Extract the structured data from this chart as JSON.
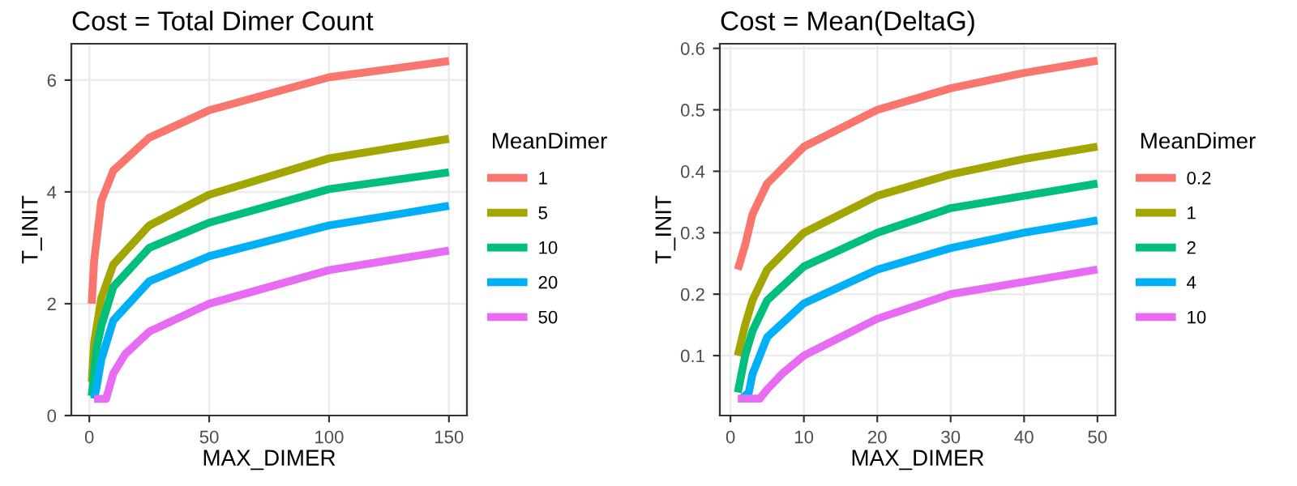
{
  "chart_data": [
    {
      "type": "line",
      "title": "Cost = Total Dimer Count",
      "xlabel": "MAX_DIMER",
      "ylabel": "T_INIT",
      "legend_title": "MeanDimer",
      "legend": "right",
      "grid": true,
      "xlim": [
        -7.5,
        157.5
      ],
      "ylim": [
        0,
        6.65
      ],
      "xticks": [
        0,
        50,
        100,
        150
      ],
      "yticks": [
        0,
        2,
        4,
        6
      ],
      "series": [
        {
          "name": "1",
          "color": "#f8766d",
          "x": [
            1,
            2,
            5,
            10,
            25,
            50,
            100,
            150
          ],
          "values": [
            2.0,
            2.76,
            3.84,
            4.38,
            4.97,
            5.46,
            6.05,
            6.34
          ]
        },
        {
          "name": "5",
          "color": "#a3a500",
          "x": [
            1,
            2,
            5,
            10,
            25,
            50,
            100,
            150
          ],
          "values": [
            0.6,
            1.3,
            2.1,
            2.7,
            3.4,
            3.95,
            4.6,
            4.95
          ]
        },
        {
          "name": "10",
          "color": "#00bf7d",
          "x": [
            1,
            3,
            5,
            10,
            25,
            50,
            100,
            150
          ],
          "values": [
            0.35,
            1.2,
            1.6,
            2.3,
            3.0,
            3.45,
            4.05,
            4.35
          ]
        },
        {
          "name": "20",
          "color": "#00b0f6",
          "x": [
            2,
            3,
            5,
            10,
            25,
            50,
            100,
            150
          ],
          "values": [
            0.3,
            0.5,
            1.0,
            1.7,
            2.4,
            2.85,
            3.4,
            3.75
          ]
        },
        {
          "name": "50",
          "color": "#e76bf3",
          "x": [
            2,
            7,
            10,
            15,
            25,
            50,
            100,
            150
          ],
          "values": [
            0.3,
            0.3,
            0.75,
            1.1,
            1.5,
            2.0,
            2.6,
            2.95
          ]
        }
      ]
    },
    {
      "type": "line",
      "title": "Cost = Mean(DeltaG)",
      "xlabel": "MAX_DIMER",
      "ylabel": "T_INIT",
      "legend_title": "MeanDimer",
      "legend": "right",
      "grid": true,
      "xlim": [
        -1.45,
        52.45
      ],
      "ylim": [
        0.0025,
        0.6075
      ],
      "xticks": [
        0,
        10,
        20,
        30,
        40,
        50
      ],
      "yticks": [
        0.1,
        0.2,
        0.3,
        0.4,
        0.5,
        0.6
      ],
      "series": [
        {
          "name": "0.2",
          "color": "#f8766d",
          "x": [
            1,
            2,
            3,
            5,
            10,
            20,
            30,
            40,
            50
          ],
          "values": [
            0.24,
            0.28,
            0.33,
            0.38,
            0.44,
            0.5,
            0.535,
            0.56,
            0.58
          ]
        },
        {
          "name": "1",
          "color": "#a3a500",
          "x": [
            1,
            2,
            3,
            5,
            10,
            20,
            30,
            40,
            50
          ],
          "values": [
            0.1,
            0.15,
            0.19,
            0.24,
            0.3,
            0.36,
            0.395,
            0.42,
            0.44
          ]
        },
        {
          "name": "2",
          "color": "#00bf7d",
          "x": [
            1,
            2,
            3,
            5,
            10,
            20,
            30,
            40,
            50
          ],
          "values": [
            0.04,
            0.1,
            0.14,
            0.19,
            0.245,
            0.3,
            0.34,
            0.36,
            0.38
          ]
        },
        {
          "name": "4",
          "color": "#00b0f6",
          "x": [
            1.5,
            2.5,
            3,
            5,
            10,
            20,
            30,
            40,
            50
          ],
          "values": [
            0.03,
            0.04,
            0.07,
            0.13,
            0.185,
            0.24,
            0.275,
            0.3,
            0.32
          ]
        },
        {
          "name": "10",
          "color": "#e76bf3",
          "x": [
            1,
            4,
            5,
            7,
            10,
            20,
            30,
            40,
            50
          ],
          "values": [
            0.03,
            0.03,
            0.045,
            0.07,
            0.1,
            0.16,
            0.2,
            0.22,
            0.24
          ]
        }
      ]
    }
  ]
}
